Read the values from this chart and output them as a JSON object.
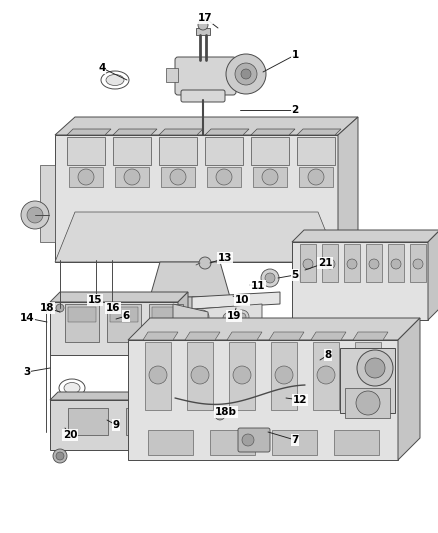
{
  "bg_color": "#ffffff",
  "fig_width": 4.38,
  "fig_height": 5.33,
  "dpi": 100,
  "ec": "#4a4a4a",
  "lw_main": 0.7,
  "labels": [
    [
      "17",
      205,
      18,
      218,
      28
    ],
    [
      "1",
      295,
      55,
      263,
      72
    ],
    [
      "4",
      102,
      68,
      127,
      80
    ],
    [
      "2",
      295,
      110,
      240,
      110
    ],
    [
      "13",
      225,
      258,
      210,
      263
    ],
    [
      "21",
      325,
      263,
      305,
      270
    ],
    [
      "5",
      295,
      275,
      278,
      278
    ],
    [
      "11",
      258,
      286,
      250,
      285
    ],
    [
      "10",
      242,
      300,
      233,
      296
    ],
    [
      "19",
      234,
      316,
      236,
      308
    ],
    [
      "18",
      47,
      308,
      60,
      312
    ],
    [
      "15",
      95,
      300,
      98,
      305
    ],
    [
      "16",
      113,
      308,
      112,
      311
    ],
    [
      "6",
      126,
      316,
      116,
      319
    ],
    [
      "14",
      27,
      318,
      47,
      322
    ],
    [
      "3",
      27,
      372,
      50,
      368
    ],
    [
      "9",
      116,
      425,
      107,
      420
    ],
    [
      "20",
      70,
      435,
      65,
      428
    ],
    [
      "8",
      328,
      355,
      320,
      360
    ],
    [
      "12",
      300,
      400,
      286,
      398
    ],
    [
      "18b",
      226,
      412,
      220,
      416
    ],
    [
      "7",
      295,
      440,
      268,
      432
    ]
  ]
}
